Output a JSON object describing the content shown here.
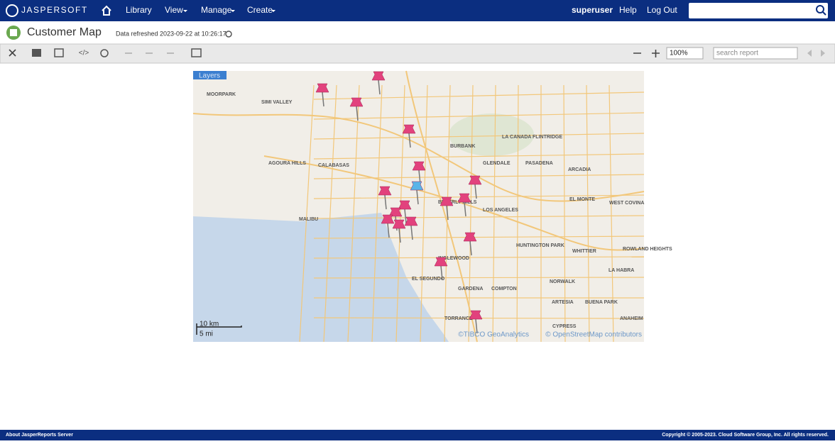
{
  "header": {
    "brand": "JASPERSOFT",
    "nav": [
      "Library",
      "View",
      "Manage",
      "Create"
    ],
    "user": "superuser",
    "help": "Help",
    "logout": "Log Out"
  },
  "page": {
    "title": "Customer Map",
    "refreshed": "Data refreshed 2023-09-22 at 10:26:17"
  },
  "toolbar": {
    "zoom": "100%",
    "search_placeholder": "search report"
  },
  "map": {
    "layers": "Layers",
    "places": [
      "MOORPARK",
      "SIMI VALLEY",
      "LA CANADA FLINTRIDGE",
      "BURBANK",
      "GLENDALE",
      "PASADENA",
      "AGOURA HILLS",
      "CALABASAS",
      "ARCADIA",
      "EL MONTE",
      "WEST COVINA",
      "BEVERLY HILLS",
      "LOS ANGELES",
      "MALIBU",
      "HUNTINGTON PARK",
      "WHITTIER",
      "ROWLAND HEIGHTS",
      "INGLEWOOD",
      "LA HABRA",
      "EL SEGUNDO",
      "NORWALK",
      "GARDENA",
      "COMPTON",
      "ARTESIA",
      "BUENA PARK",
      "TORRANCE",
      "ANAHEIM",
      "CYPRESS"
    ],
    "scale_km": "10 km",
    "scale_mi": "5 mi",
    "attribution_tibco": "©TIBCO GeoAnalytics",
    "attribution_osm": "© OpenStreetMap contributors"
  },
  "footer": {
    "left": "About JasperReports Server",
    "right": "Copyright © 2005-2023. Cloud Software Group, Inc. All rights reserved."
  }
}
